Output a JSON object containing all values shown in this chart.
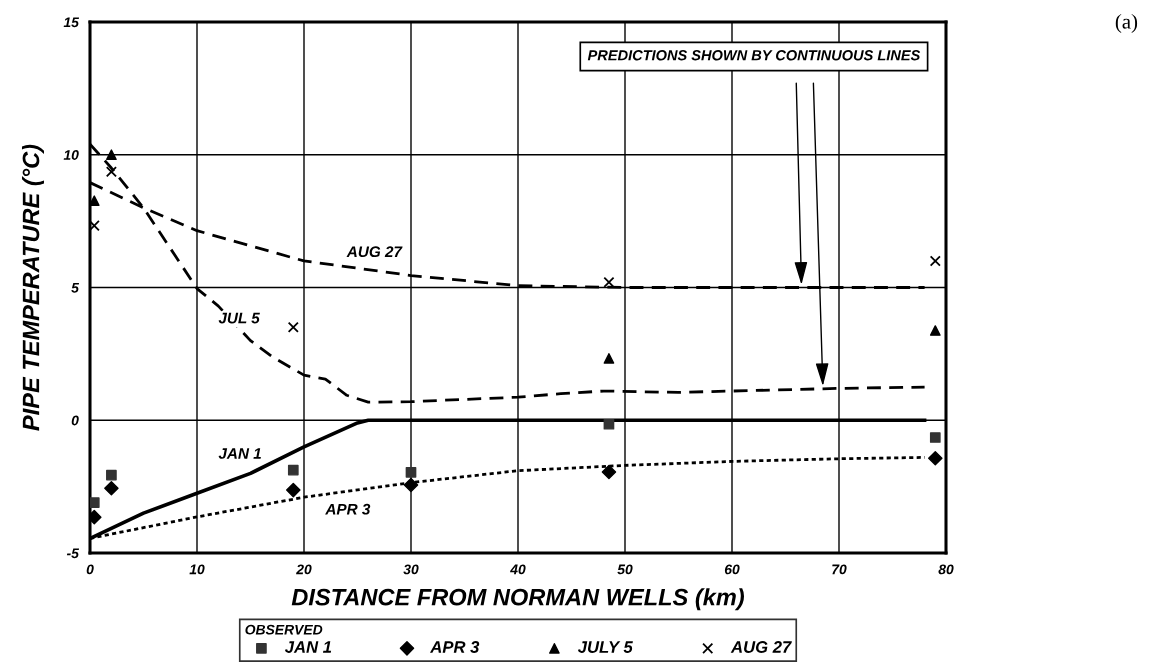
{
  "chart_data": {
    "type": "scatter",
    "xlabel": "DISTANCE FROM NORMAN WELLS (km)",
    "ylabel": "PIPE TEMPERATURE (°C)",
    "xlim": [
      0,
      80
    ],
    "xticks": [
      0,
      10,
      20,
      30,
      40,
      50,
      60,
      70,
      80
    ],
    "ylim": [
      -5,
      15
    ],
    "yticks": [
      -5,
      0,
      5,
      10,
      15
    ],
    "grid": true,
    "legend": "bottom",
    "legend_title": "OBSERVED",
    "series": [
      {
        "name": "JAN 1",
        "marker": "square",
        "color": "#333333",
        "x": [
          0.4,
          2,
          19,
          30,
          48.5,
          79
        ],
        "values": [
          -3.1,
          -2.07,
          -1.88,
          -1.96,
          -0.15,
          -0.65
        ]
      },
      {
        "name": "APR 3",
        "marker": "diamond",
        "color": "#000000",
        "x": [
          0.4,
          2,
          19,
          30,
          48.5,
          79
        ],
        "values": [
          -3.65,
          -2.56,
          -2.63,
          -2.44,
          -1.95,
          -1.43
        ]
      },
      {
        "name": "JULY 5",
        "marker": "triangle",
        "color": "#000000",
        "x": [
          0.4,
          2,
          48.5,
          79
        ],
        "values": [
          8.27,
          10.0,
          2.33,
          3.38
        ]
      },
      {
        "name": "AUG 27",
        "marker": "cross",
        "color": "#000000",
        "x": [
          0.4,
          2,
          19,
          48.5,
          79
        ],
        "values": [
          7.33,
          9.36,
          3.5,
          5.2,
          6.0
        ]
      },
      {
        "name": "JAN 1",
        "type": "line",
        "line_style": "solid",
        "color": "#000000",
        "x": [
          0,
          5,
          10,
          15,
          20,
          25,
          26,
          78
        ],
        "values": [
          -4.45,
          -3.5,
          -2.75,
          -2.0,
          -1.0,
          -0.1,
          0,
          0
        ]
      },
      {
        "name": "APR 3",
        "type": "line",
        "line_style": "dotted",
        "color": "#000000",
        "x": [
          0,
          10,
          20,
          30,
          40,
          50,
          60,
          70,
          78
        ],
        "values": [
          -4.45,
          -3.64,
          -2.9,
          -2.35,
          -1.9,
          -1.7,
          -1.55,
          -1.45,
          -1.4
        ]
      },
      {
        "name": "JUL 5",
        "type": "line",
        "line_style": "dashed",
        "color": "#000000",
        "x": [
          0,
          2,
          5,
          10,
          12,
          15,
          17,
          20,
          22,
          24,
          26,
          30,
          40,
          44,
          48,
          55,
          60,
          70,
          78
        ],
        "values": [
          10.4,
          9.5,
          8.0,
          4.96,
          4.3,
          3.0,
          2.4,
          1.7,
          1.55,
          0.94,
          0.68,
          0.7,
          0.87,
          1.0,
          1.1,
          1.05,
          1.1,
          1.2,
          1.25
        ]
      },
      {
        "name": "AUG 27",
        "type": "line",
        "line_style": "dashed",
        "color": "#000000",
        "x": [
          0,
          5,
          10,
          20,
          30,
          40,
          50,
          78
        ],
        "values": [
          8.95,
          8.0,
          7.14,
          6.0,
          5.45,
          5.07,
          5.0,
          5.0
        ]
      }
    ],
    "annotations": [
      "PREDICTIONS SHOWN BY CONTINUOUS LINES",
      "(a)"
    ]
  }
}
